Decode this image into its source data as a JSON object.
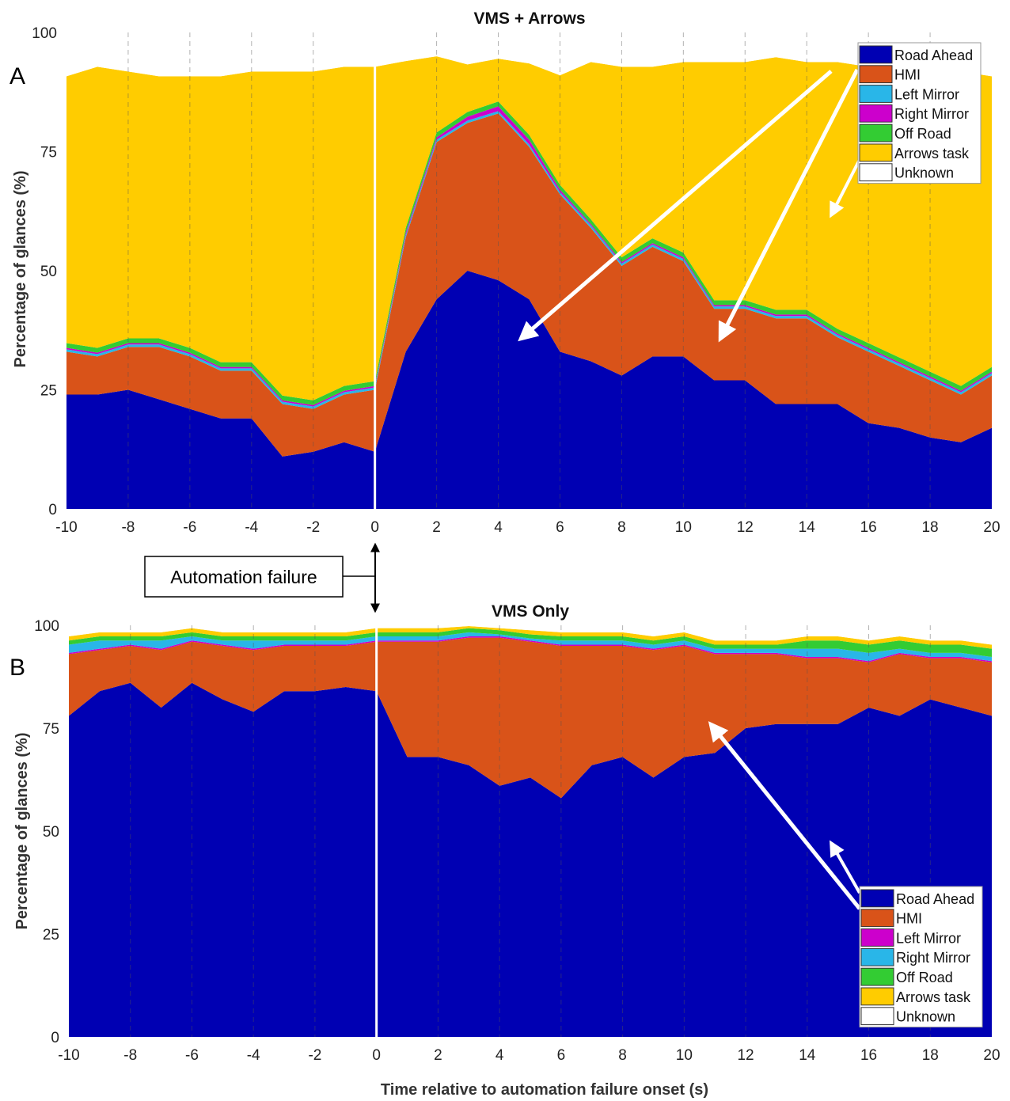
{
  "panel_letters": [
    "A",
    "B"
  ],
  "callout": {
    "label": "Automation failure"
  },
  "shared_xlabel": "Time relative to automation failure onset (s)",
  "chart_data": [
    {
      "type": "area",
      "title": "VMS + Arrows",
      "xlabel": "",
      "ylabel": "Percentage of glances (%)",
      "xlim": [
        -10,
        20
      ],
      "ylim": [
        0,
        100
      ],
      "xticks": [
        -10,
        -8,
        -6,
        -4,
        -2,
        0,
        2,
        4,
        6,
        8,
        10,
        12,
        14,
        16,
        18,
        20
      ],
      "yticks": [
        0,
        25,
        50,
        75,
        100
      ],
      "grid": "vertical dashed",
      "legend_position": "top-right",
      "x": [
        -10,
        -9,
        -8,
        -7,
        -6,
        -5,
        -4,
        -3,
        -2,
        -1,
        0,
        1,
        2,
        3,
        4,
        5,
        6,
        7,
        8,
        9,
        10,
        11,
        12,
        13,
        14,
        15,
        16,
        17,
        18,
        19,
        20
      ],
      "series": [
        {
          "name": "Road Ahead",
          "color": "#0000b3",
          "values": [
            24,
            24,
            25,
            23,
            21,
            19,
            19,
            11,
            12,
            14,
            12,
            33,
            44,
            50,
            48,
            44,
            33,
            31,
            28,
            32,
            32,
            27,
            27,
            22,
            22,
            22,
            18,
            17,
            15,
            14,
            17
          ]
        },
        {
          "name": "HMI",
          "color": "#d95319",
          "values": [
            9,
            8,
            9,
            11,
            11,
            10,
            10,
            11,
            9,
            10,
            13,
            24,
            33,
            31,
            35,
            32,
            33,
            28,
            23,
            23,
            20,
            15,
            15,
            18,
            18,
            14,
            15,
            13,
            12,
            10,
            11
          ]
        },
        {
          "name": "Left Mirror",
          "color": "#29b6e8",
          "values": [
            0.5,
            0.5,
            0.5,
            0.5,
            0.5,
            0.5,
            0.5,
            0.5,
            0.5,
            0.5,
            0.5,
            0.5,
            0.5,
            0.5,
            0.5,
            0.5,
            0.5,
            0.5,
            0.5,
            0.5,
            0.5,
            0.5,
            0.5,
            0.5,
            0.5,
            0.5,
            0.5,
            0.5,
            0.5,
            0.5,
            0.5
          ]
        },
        {
          "name": "Right Mirror",
          "color": "#cc00cc",
          "values": [
            0.3,
            0.3,
            0.3,
            0.3,
            0.3,
            0.3,
            0.3,
            0.3,
            0.3,
            0.3,
            0.3,
            0.5,
            0.5,
            0.8,
            1.0,
            1.0,
            0.5,
            0.3,
            0.3,
            0.3,
            0.3,
            0.3,
            0.3,
            0.3,
            0.3,
            0.3,
            0.3,
            0.3,
            0.3,
            0.3,
            0.3
          ]
        },
        {
          "name": "Off Road",
          "color": "#33cc33",
          "values": [
            1,
            1,
            1,
            1,
            1,
            1,
            1,
            1,
            1,
            1,
            1,
            1,
            1,
            1,
            1,
            1,
            1,
            1,
            1,
            1,
            1,
            1,
            1,
            1,
            1,
            1,
            1,
            1,
            1,
            1,
            1
          ]
        },
        {
          "name": "Arrows task",
          "color": "#ffcc00",
          "values": [
            56,
            59,
            56,
            55,
            57,
            60,
            61,
            68,
            69,
            67,
            66,
            35,
            16,
            10,
            9,
            15,
            23,
            33,
            40,
            36,
            40,
            50,
            50,
            53,
            52,
            56,
            58,
            61,
            64,
            66,
            61
          ]
        },
        {
          "name": "Unknown",
          "color": "#ffffff",
          "values": [
            9.2,
            7.2,
            8.2,
            9.2,
            9.2,
            9.2,
            8.2,
            8.2,
            8.2,
            7.2,
            7.2,
            5.2,
            4.7,
            4.7,
            4.7,
            5.7,
            8.7,
            5.7,
            7.2,
            7.2,
            6.2,
            6.2,
            6.2,
            5.2,
            6.2,
            6.2,
            6.2,
            7.2,
            7.2,
            8.2,
            9.2
          ]
        }
      ]
    },
    {
      "type": "area",
      "title": "VMS Only",
      "xlabel": "Time relative to automation failure onset (s)",
      "ylabel": "Percentage of glances (%)",
      "xlim": [
        -10,
        20
      ],
      "ylim": [
        0,
        100
      ],
      "xticks": [
        -10,
        -8,
        -6,
        -4,
        -2,
        0,
        2,
        4,
        6,
        8,
        10,
        12,
        14,
        16,
        18,
        20
      ],
      "yticks": [
        0,
        25,
        50,
        75,
        100
      ],
      "grid": "vertical dashed",
      "legend_position": "bottom-right",
      "x": [
        -10,
        -9,
        -8,
        -7,
        -6,
        -5,
        -4,
        -3,
        -2,
        -1,
        0,
        1,
        2,
        3,
        4,
        5,
        6,
        7,
        8,
        9,
        10,
        11,
        12,
        13,
        14,
        15,
        16,
        17,
        18,
        19,
        20
      ],
      "series": [
        {
          "name": "Road Ahead",
          "color": "#0000b3",
          "values": [
            78,
            84,
            86,
            80,
            86,
            82,
            79,
            84,
            84,
            85,
            84,
            68,
            68,
            66,
            61,
            63,
            58,
            66,
            68,
            63,
            68,
            69,
            75,
            76,
            76,
            76,
            80,
            78,
            82,
            80,
            78
          ]
        },
        {
          "name": "HMI",
          "color": "#d95319",
          "values": [
            15,
            10,
            9,
            14,
            10,
            13,
            15,
            11,
            11,
            10,
            12,
            28,
            28,
            31,
            36,
            33,
            37,
            29,
            27,
            31,
            27,
            24,
            18,
            17,
            16,
            16,
            11,
            15,
            10,
            12,
            13
          ]
        },
        {
          "name": "Left Mirror",
          "color": "#cc00cc",
          "values": [
            0.3,
            0.3,
            0.3,
            0.3,
            0.3,
            0.3,
            0.3,
            0.3,
            0.3,
            0.3,
            0.3,
            0.3,
            0.3,
            0.3,
            0.3,
            0.3,
            0.3,
            0.3,
            0.3,
            0.3,
            0.3,
            0.3,
            0.3,
            0.3,
            0.3,
            0.3,
            0.3,
            0.3,
            0.3,
            0.3,
            0.3
          ]
        },
        {
          "name": "Right Mirror",
          "color": "#29b6e8",
          "values": [
            2,
            2,
            1,
            2,
            1,
            1,
            2,
            1,
            1,
            1,
            1,
            1,
            1,
            1,
            0.5,
            0.5,
            1,
            1,
            1,
            1,
            1,
            1,
            1,
            1,
            2,
            2,
            2,
            1,
            1,
            1,
            1
          ]
        },
        {
          "name": "Off Road",
          "color": "#33cc33",
          "values": [
            1,
            1,
            1,
            1,
            1,
            1,
            1,
            1,
            1,
            1,
            1,
            1,
            1,
            1,
            1,
            1,
            1,
            1,
            1,
            1,
            1,
            1,
            1,
            1,
            2,
            2,
            2,
            2,
            2,
            2,
            2
          ]
        },
        {
          "name": "Arrows task",
          "color": "#ffcc00",
          "values": [
            1,
            1,
            1,
            1,
            1,
            1,
            1,
            1,
            1,
            1,
            1,
            1,
            1,
            0.5,
            0.5,
            1,
            1,
            1,
            1,
            1,
            1,
            1,
            1,
            1,
            1,
            1,
            1,
            1,
            1,
            1,
            1
          ]
        },
        {
          "name": "Unknown",
          "color": "#ffffff",
          "values": [
            2.7,
            1.7,
            1.7,
            1.7,
            0.7,
            1.7,
            1.7,
            1.7,
            1.7,
            1.7,
            0.7,
            0.7,
            0.7,
            0.2,
            0.7,
            1.2,
            1.7,
            1.7,
            1.7,
            2.7,
            1.7,
            2.7,
            2.7,
            2.7,
            2.7,
            2.7,
            2.7,
            1.7,
            3.7,
            2.7,
            3.7
          ]
        }
      ]
    }
  ]
}
